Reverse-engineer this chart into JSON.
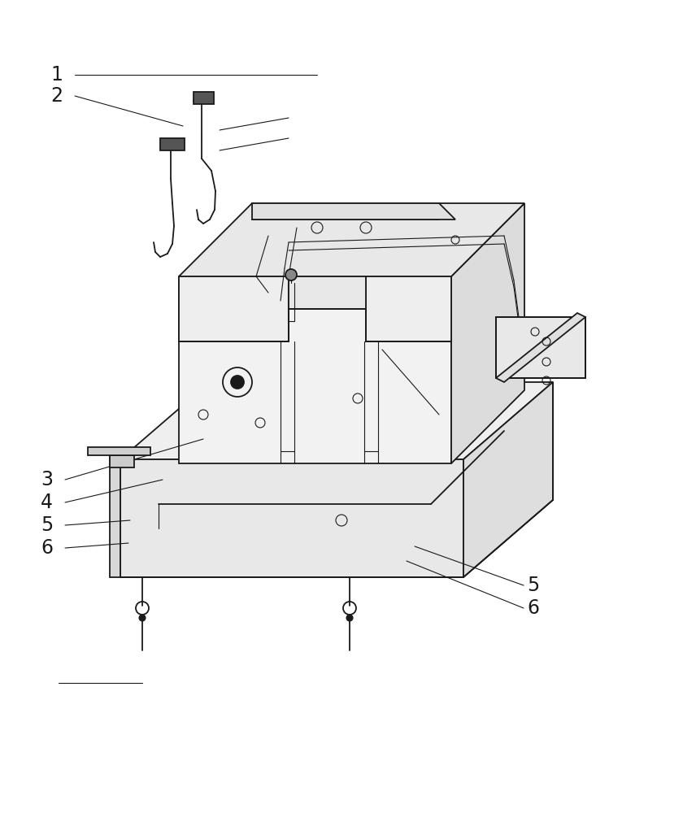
{
  "bg_color": "#ffffff",
  "line_color": "#1a1a1a",
  "figsize": [
    8.56,
    10.0
  ],
  "dpi": 100,
  "label_fontsize": 17,
  "callout_lw": 0.8,
  "main_lw": 1.3,
  "thin_lw": 0.8
}
